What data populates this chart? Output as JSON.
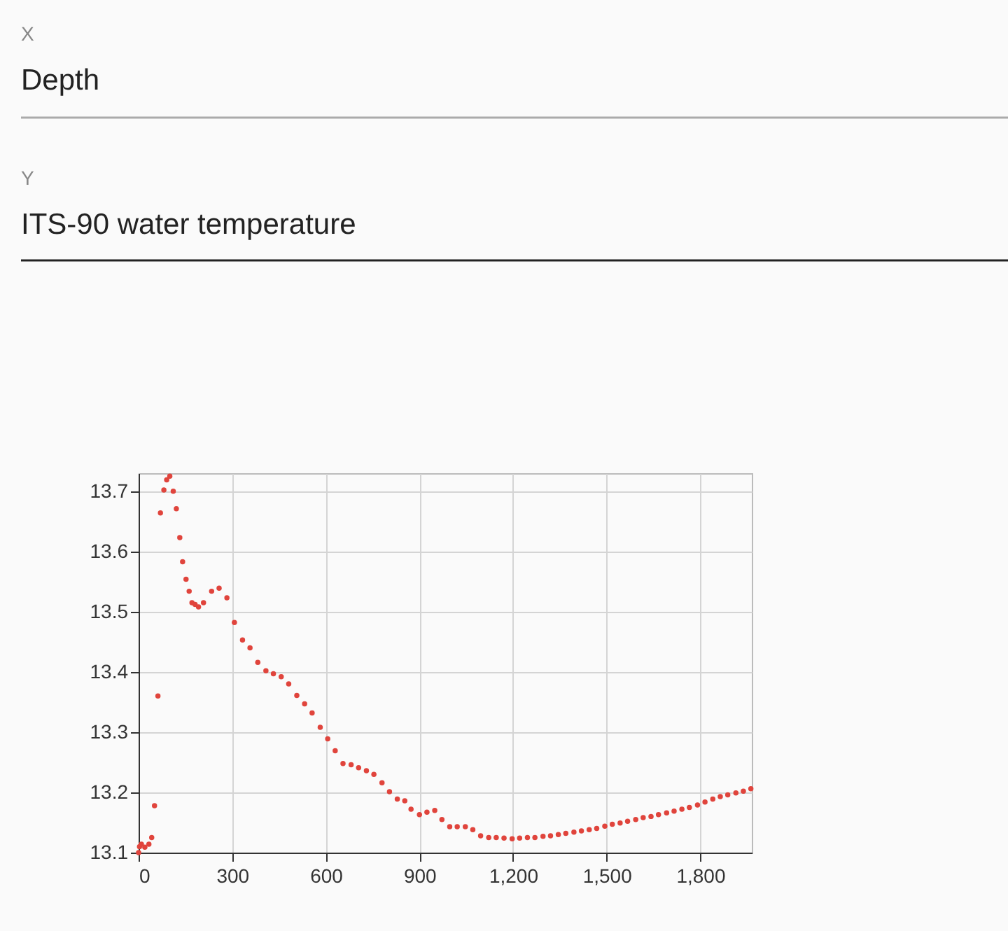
{
  "chart_data": {
    "type": "scatter",
    "annotations": [
      "X",
      "Depth",
      "Y",
      "ITS-90 water temperature"
    ],
    "x": [
      0,
      3,
      9,
      20,
      33,
      42,
      51,
      62,
      70,
      81,
      90,
      100,
      111,
      121,
      132,
      141,
      152,
      162,
      171,
      181,
      192,
      208,
      234,
      258,
      283,
      307,
      333,
      357,
      382,
      408,
      432,
      457,
      481,
      507,
      532,
      556,
      582,
      606,
      630,
      655,
      681,
      705,
      730,
      754,
      780,
      804,
      829,
      853,
      873,
      900,
      924,
      949,
      972,
      997,
      1021,
      1047,
      1071,
      1096,
      1122,
      1146,
      1171,
      1197,
      1221,
      1246,
      1270,
      1296,
      1320,
      1345,
      1369,
      1395,
      1419,
      1444,
      1468,
      1494,
      1518,
      1543,
      1567,
      1593,
      1617,
      1642,
      1666,
      1692,
      1716,
      1741,
      1765,
      1791,
      1815,
      1840,
      1864,
      1888,
      1914,
      1938,
      1962
    ],
    "series": [
      {
        "color": "#e0443c",
        "values": [
          13.1,
          13.11,
          13.114,
          13.109,
          13.114,
          13.125,
          13.178,
          13.36,
          13.664,
          13.702,
          13.719,
          13.725,
          13.7,
          13.671,
          13.623,
          13.583,
          13.554,
          13.534,
          13.515,
          13.512,
          13.508,
          13.515,
          13.534,
          13.539,
          13.523,
          13.482,
          13.453,
          13.44,
          13.416,
          13.402,
          13.397,
          13.392,
          13.38,
          13.361,
          13.347,
          13.332,
          13.308,
          13.289,
          13.269,
          13.248,
          13.246,
          13.241,
          13.236,
          13.23,
          13.216,
          13.201,
          13.189,
          13.186,
          13.172,
          13.163,
          13.167,
          13.17,
          13.155,
          13.143,
          13.143,
          13.143,
          13.138,
          13.128,
          13.125,
          13.125,
          13.124,
          13.123,
          13.124,
          13.125,
          13.125,
          13.127,
          13.128,
          13.13,
          13.132,
          13.134,
          13.136,
          13.138,
          13.14,
          13.144,
          13.147,
          13.149,
          13.152,
          13.155,
          13.158,
          13.16,
          13.163,
          13.166,
          13.169,
          13.172,
          13.175,
          13.179,
          13.184,
          13.189,
          13.193,
          13.196,
          13.199,
          13.202,
          13.206
        ]
      }
    ],
    "xlim": [
      0,
      1965
    ],
    "ylim": [
      13.1,
      13.73
    ],
    "xticks": [
      0,
      300,
      600,
      900,
      {
        "value": 1200,
        "label": "1,200"
      },
      {
        "value": 1500,
        "label": "1,500"
      },
      {
        "value": 1800,
        "label": "1,800"
      }
    ],
    "yticks": [
      13.1,
      13.2,
      13.3,
      13.4,
      13.5,
      13.6,
      13.7
    ],
    "grid": true,
    "marker": "circle"
  }
}
